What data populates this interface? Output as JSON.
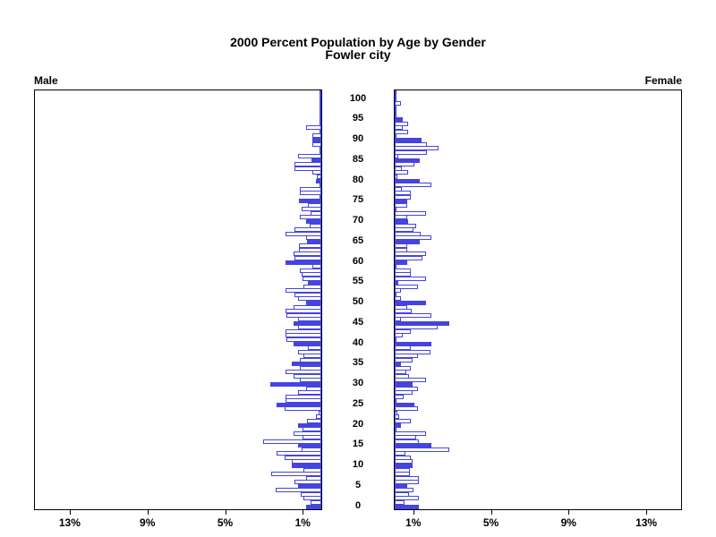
{
  "title": {
    "line1": "2000 Percent Population by Age by Gender",
    "line2": "Fowler city"
  },
  "panels": {
    "male_label": "Male",
    "female_label": "Female"
  },
  "colors": {
    "bar_blue": "#4444e0",
    "axis_black": "#000000",
    "background": "#ffffff"
  },
  "chart_data": {
    "type": "bar",
    "variant": "population-pyramid",
    "title": "2000 Percent Population by Age by Gender",
    "subtitle": "Fowler city",
    "grid": false,
    "legend": false,
    "x_axis": {
      "unit": "percent of population",
      "tick_values_pct": [
        1,
        5,
        9,
        13
      ],
      "male_tick_labels": [
        "13%",
        "9%",
        "5%",
        "1%"
      ],
      "female_tick_labels": [
        "1%",
        "5%",
        "9%",
        "13%"
      ],
      "range_pct": [
        0,
        14.8
      ],
      "direction": "male bars extend left from center, female bars extend right"
    },
    "y_axis": {
      "unit": "single year of age",
      "tick_step": 5,
      "age_ticks": [
        0,
        5,
        10,
        15,
        20,
        25,
        30,
        35,
        40,
        45,
        50,
        55,
        60,
        65,
        70,
        75,
        80,
        85,
        90,
        95,
        100
      ],
      "range": [
        0,
        100
      ]
    },
    "style_note": "ages divisible by 5 drawn as solid blue bars; other ages drawn as white bars with blue outline",
    "series": [
      {
        "name": "Male",
        "side": "left",
        "ages": "index equals age 0..100",
        "values_pct": [
          0.8,
          0.55,
          0.9,
          1.05,
          2.35,
          1.2,
          1.4,
          0.8,
          2.6,
          0.9,
          1.5,
          1.5,
          1.9,
          2.3,
          1.0,
          1.2,
          3.0,
          0.95,
          1.45,
          0.95,
          1.2,
          0.75,
          0.3,
          0.15,
          1.9,
          2.3,
          1.85,
          1.85,
          1.2,
          0.8,
          2.65,
          1.1,
          1.45,
          1.85,
          1.1,
          1.5,
          1.1,
          0.9,
          1.2,
          0.7,
          1.45,
          1.8,
          1.85,
          1.85,
          1.2,
          1.45,
          1.2,
          1.8,
          1.85,
          1.45,
          0.8,
          1.2,
          1.4,
          1.85,
          0.9,
          0.7,
          0.95,
          1.0,
          1.1,
          0.45,
          1.85,
          1.4,
          1.45,
          1.15,
          1.15,
          0.75,
          0.8,
          1.85,
          1.4,
          0.6,
          0.8,
          1.1,
          0.55,
          1.0,
          0.7,
          1.15,
          0,
          1.1,
          1.1,
          0,
          0.3,
          0.25,
          0.45,
          1.4,
          1.4,
          0.5,
          1.2,
          0,
          0,
          0.45,
          0.45,
          0.45,
          0,
          0.8,
          0,
          0,
          0,
          0,
          0,
          0,
          0
        ]
      },
      {
        "name": "Female",
        "side": "right",
        "ages": "index equals age 0..100",
        "values_pct": [
          1.26,
          0.5,
          1.26,
          0.73,
          0.95,
          0.65,
          1.26,
          1.26,
          0.8,
          0.8,
          0.9,
          0.9,
          0.85,
          0.55,
          2.8,
          1.88,
          1.25,
          1.1,
          1.6,
          0.1,
          0.3,
          0.85,
          0.25,
          0.15,
          1.2,
          1.0,
          0.1,
          0.45,
          0.9,
          1.2,
          0.9,
          1.6,
          0.73,
          0.6,
          0.85,
          0.3,
          0.9,
          1.2,
          1.85,
          0.85,
          1.88,
          0.1,
          0.4,
          0.85,
          2.2,
          2.8,
          0.3,
          1.88,
          0.86,
          0.64,
          1.6,
          0.3,
          0.1,
          0.3,
          1.2,
          0.2,
          1.6,
          0.85,
          0.85,
          0,
          0.64,
          1.45,
          1.6,
          0.64,
          0.64,
          1.27,
          1.9,
          1.33,
          0.95,
          1.1,
          0.7,
          0.64,
          1.6,
          0.1,
          0.64,
          0.64,
          0.85,
          0.85,
          0.35,
          1.9,
          1.3,
          0.15,
          0.68,
          0.38,
          1.0,
          1.3,
          0.2,
          1.65,
          2.24,
          1.65,
          1.36,
          0,
          0.68,
          0.42,
          0.68,
          0.42,
          0,
          0,
          0,
          0.3,
          0
        ]
      }
    ]
  }
}
